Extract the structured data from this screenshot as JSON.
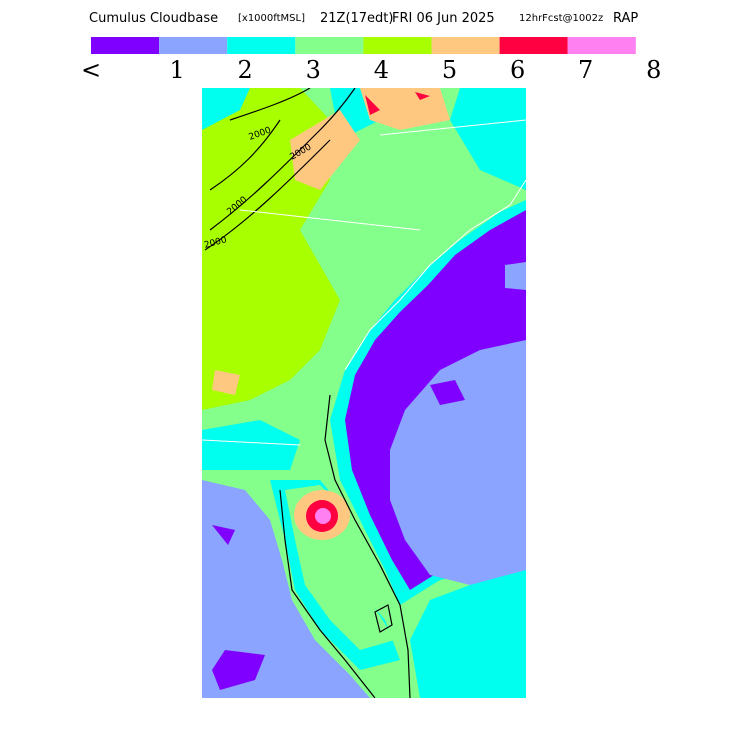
{
  "header": {
    "title": "Cumulus Cloudbase",
    "units": "[x1000ftMSL]",
    "valid_time": "21Z(17edt)",
    "date": "FRI 06 Jun 2025",
    "forecast": "12hrFcst@1002z",
    "model": "RAP"
  },
  "legend": {
    "colors": [
      "#8000ff",
      "#8aa4ff",
      "#00ffee",
      "#84ff8c",
      "#a8ff00",
      "#ffc880",
      "#ff0040",
      "#ff80f0"
    ],
    "labels": [
      "<",
      "1",
      "2",
      "3",
      "4",
      "5",
      "6",
      "7",
      "8"
    ]
  },
  "map": {
    "contour_labels": [
      "2000",
      "2000",
      "2000",
      "2000"
    ]
  }
}
